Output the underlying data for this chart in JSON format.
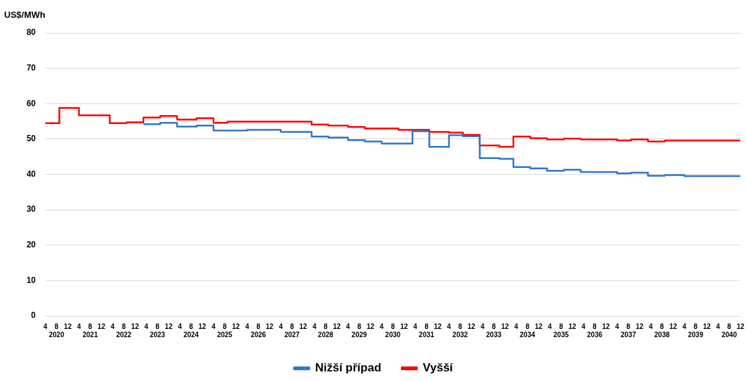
{
  "chart_data": {
    "type": "step",
    "ylabel": "US$/MWh",
    "legend": "bottom",
    "grid": "y",
    "marker": "none",
    "line_style": "solid",
    "ylim": [
      0,
      80
    ],
    "yticks": [
      0,
      10,
      20,
      30,
      40,
      50,
      60,
      70,
      80
    ],
    "xlim": [
      "2020-04",
      "2040-12"
    ],
    "xticks": [
      {
        "value": "2020-04",
        "label": "4"
      },
      {
        "value": "2020-08",
        "label": "8\n2020"
      },
      {
        "value": "2020-12",
        "label": "12"
      },
      {
        "value": "2021-04",
        "label": "4"
      },
      {
        "value": "2021-08",
        "label": "8\n2021"
      },
      {
        "value": "2021-12",
        "label": "12"
      },
      {
        "value": "2022-04",
        "label": "4"
      },
      {
        "value": "2022-08",
        "label": "8\n2022"
      },
      {
        "value": "2022-12",
        "label": "12"
      },
      {
        "value": "2023-04",
        "label": "4"
      },
      {
        "value": "2023-08",
        "label": "8\n2023"
      },
      {
        "value": "2023-12",
        "label": "12"
      },
      {
        "value": "2024-04",
        "label": "4"
      },
      {
        "value": "2024-08",
        "label": "8\n2024"
      },
      {
        "value": "2024-12",
        "label": "12"
      },
      {
        "value": "2025-04",
        "label": "4"
      },
      {
        "value": "2025-08",
        "label": "8\n2025"
      },
      {
        "value": "2025-12",
        "label": "12"
      },
      {
        "value": "2026-04",
        "label": "4"
      },
      {
        "value": "2026-08",
        "label": "8\n2026"
      },
      {
        "value": "2026-12",
        "label": "12"
      },
      {
        "value": "2027-04",
        "label": "4"
      },
      {
        "value": "2027-08",
        "label": "8\n2027"
      },
      {
        "value": "2027-12",
        "label": "12"
      },
      {
        "value": "2028-04",
        "label": "4"
      },
      {
        "value": "2028-08",
        "label": "8\n2028"
      },
      {
        "value": "2028-12",
        "label": "12"
      },
      {
        "value": "2029-04",
        "label": "4"
      },
      {
        "value": "2029-08",
        "label": "8\n2029"
      },
      {
        "value": "2029-12",
        "label": "12"
      },
      {
        "value": "2030-04",
        "label": "4"
      },
      {
        "value": "2030-08",
        "label": "8\n2030"
      },
      {
        "value": "2030-12",
        "label": "12"
      },
      {
        "value": "2031-04",
        "label": "4"
      },
      {
        "value": "2031-08",
        "label": "8\n2031"
      },
      {
        "value": "2031-12",
        "label": "12"
      },
      {
        "value": "2032-04",
        "label": "4"
      },
      {
        "value": "2032-08",
        "label": "8\n2032"
      },
      {
        "value": "2032-12",
        "label": "12"
      },
      {
        "value": "2033-04",
        "label": "4"
      },
      {
        "value": "2033-08",
        "label": "8\n2033"
      },
      {
        "value": "2033-12",
        "label": "12"
      },
      {
        "value": "2034-04",
        "label": "4"
      },
      {
        "value": "2034-08",
        "label": "8\n2034"
      },
      {
        "value": "2034-12",
        "label": "12"
      },
      {
        "value": "2035-04",
        "label": "4"
      },
      {
        "value": "2035-08",
        "label": "8\n2035"
      },
      {
        "value": "2035-12",
        "label": "12"
      },
      {
        "value": "2036-04",
        "label": "4"
      },
      {
        "value": "2036-08",
        "label": "8\n2036"
      },
      {
        "value": "2036-12",
        "label": "12"
      },
      {
        "value": "2037-04",
        "label": "4"
      },
      {
        "value": "2037-08",
        "label": "8\n2037"
      },
      {
        "value": "2037-12",
        "label": "12"
      },
      {
        "value": "2038-04",
        "label": "4"
      },
      {
        "value": "2038-08",
        "label": "8\n2038"
      },
      {
        "value": "2038-12",
        "label": "12"
      },
      {
        "value": "2039-04",
        "label": "4"
      },
      {
        "value": "2039-08",
        "label": "8\n2039"
      },
      {
        "value": "2039-12",
        "label": "12"
      },
      {
        "value": "2040-04",
        "label": "4"
      },
      {
        "value": "2040-08",
        "label": "8\n2040"
      },
      {
        "value": "2040-12",
        "label": "12"
      }
    ],
    "series": [
      {
        "name": "Nižší případ",
        "color": "#2e75c6",
        "x": [
          "2023-03",
          "2023-09",
          "2024-03",
          "2024-10",
          "2025-04",
          "2026-04",
          "2027-04",
          "2028-03",
          "2028-09",
          "2029-04",
          "2029-10",
          "2030-04",
          "2031-03",
          "2031-09",
          "2032-04",
          "2032-09",
          "2033-03",
          "2033-10",
          "2034-03",
          "2034-09",
          "2035-03",
          "2035-09",
          "2036-03",
          "2037-04",
          "2037-09",
          "2038-03",
          "2038-09",
          "2039-04",
          "2040-12"
        ],
        "values": [
          54.2,
          54.6,
          53.5,
          53.8,
          52.4,
          52.6,
          52.0,
          50.7,
          50.4,
          49.7,
          49.3,
          48.7,
          52.2,
          47.8,
          51.1,
          50.8,
          44.6,
          44.4,
          42.1,
          41.7,
          41.0,
          41.3,
          40.7,
          40.3,
          40.5,
          39.6,
          39.8,
          39.5,
          39.5
        ]
      },
      {
        "name": "Vyšší",
        "color": "#ff0000",
        "x": [
          "2020-04",
          "2020-09",
          "2021-04",
          "2022-03",
          "2022-09",
          "2023-03",
          "2023-09",
          "2024-03",
          "2024-10",
          "2025-04",
          "2025-09",
          "2028-03",
          "2028-09",
          "2029-04",
          "2029-10",
          "2030-10",
          "2031-09",
          "2032-04",
          "2032-09",
          "2033-03",
          "2033-10",
          "2034-03",
          "2034-09",
          "2035-03",
          "2035-09",
          "2036-03",
          "2037-04",
          "2037-09",
          "2038-03",
          "2038-09",
          "2040-12"
        ],
        "values": [
          54.5,
          58.8,
          56.7,
          54.5,
          54.7,
          56.1,
          56.5,
          55.5,
          55.9,
          54.6,
          54.9,
          54.1,
          53.8,
          53.4,
          53.0,
          52.6,
          52.0,
          51.8,
          51.2,
          48.2,
          47.8,
          50.7,
          50.2,
          49.9,
          50.1,
          49.9,
          49.6,
          49.9,
          49.3,
          49.6,
          49.6
        ]
      }
    ]
  }
}
